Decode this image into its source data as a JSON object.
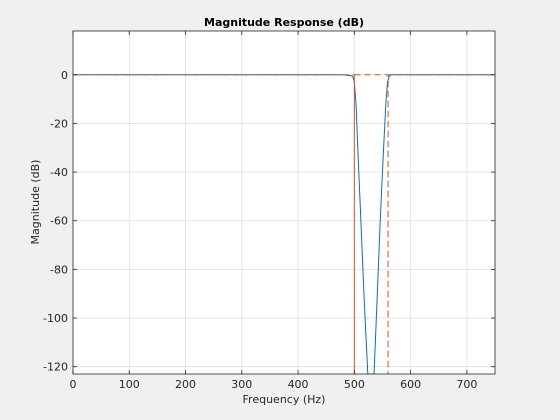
{
  "chart_data": {
    "type": "line",
    "title": "Magnitude Response (dB)",
    "xlabel": "Frequency (Hz)",
    "ylabel": "Magnitude (dB)",
    "xlim": [
      0,
      750
    ],
    "ylim": [
      -123,
      18
    ],
    "xticks": [
      0,
      100,
      200,
      300,
      400,
      500,
      600,
      700
    ],
    "yticks": [
      0,
      -20,
      -40,
      -60,
      -80,
      -100,
      -120
    ],
    "xtick_labels": [
      "0",
      "100",
      "200",
      "300",
      "400",
      "500",
      "600",
      "700"
    ],
    "ytick_labels": [
      "0",
      "-20",
      "-40",
      "-60",
      "-80",
      "-100",
      "-120"
    ],
    "grid": true,
    "legend": "none",
    "series": [
      {
        "style": "solid",
        "color": "#0072bd",
        "x": [
          0,
          480,
          497,
          500,
          503,
          507,
          512,
          518,
          524,
          528,
          530,
          535,
          540,
          546,
          551,
          556,
          559,
          562,
          566,
          570,
          750
        ],
        "y": [
          0,
          0,
          -0.5,
          -3,
          -12,
          -35,
          -62,
          -95,
          -123,
          -123,
          -123,
          -123,
          -95,
          -60,
          -35,
          -12,
          -3,
          -0.5,
          0,
          0,
          0
        ]
      },
      {
        "style": "dashed",
        "color": "#d95319",
        "x": [
          0,
          500,
          500,
          500,
          560,
          560,
          560,
          750
        ],
        "y": [
          0,
          0,
          -123,
          0,
          0,
          -123,
          0,
          0
        ]
      }
    ]
  }
}
